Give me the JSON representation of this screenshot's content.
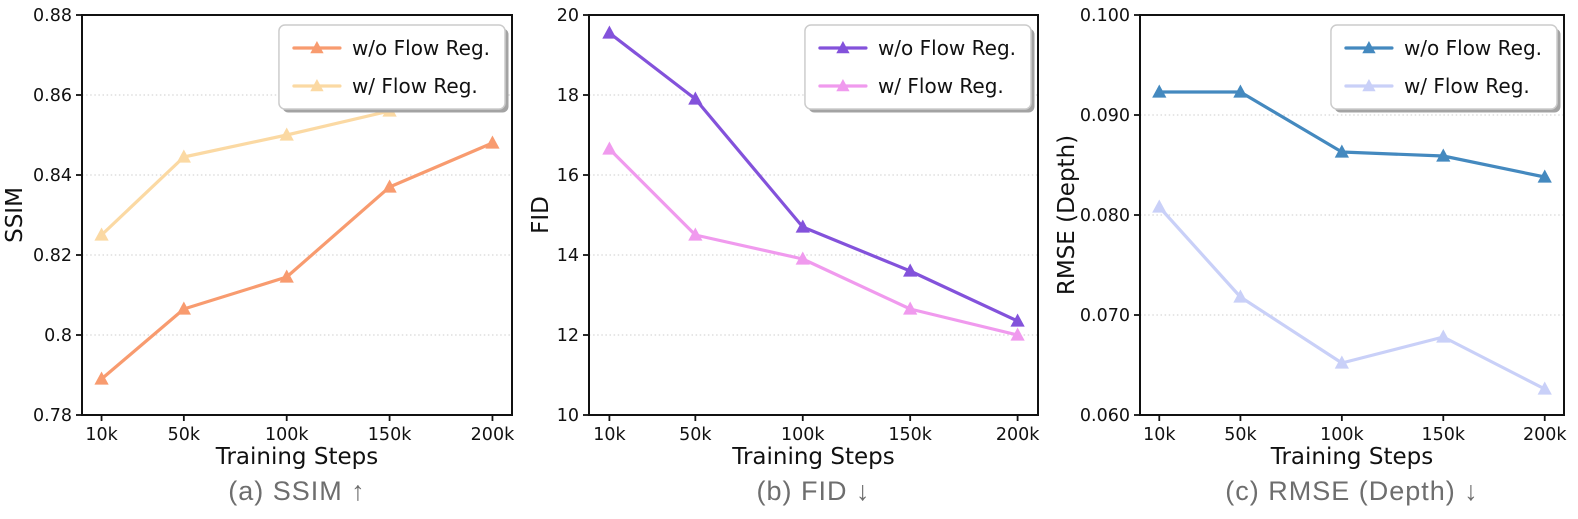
{
  "figure_labels": {
    "caption_a": "(a) SSIM ↑",
    "caption_b": "(b) FID ↓",
    "caption_c": "(c) RMSE (Depth) ↓"
  },
  "colors": {
    "axis": "#111111",
    "grid": "#d8d8d8",
    "caption_gray": "#6e6e6e",
    "legend_border": "#cccccc",
    "legend_shadow": "#a3a3a3"
  },
  "chart_data": [
    {
      "type": "line",
      "caption": "(a) SSIM ↑",
      "xlabel": "Training Steps",
      "ylabel": "SSIM",
      "x": [
        10,
        50,
        100,
        150,
        200
      ],
      "x_tick_labels": [
        "10k",
        "50k",
        "100k",
        "150k",
        "200k"
      ],
      "xlim": [
        0.5,
        209.5
      ],
      "ylim": [
        0.78,
        0.88
      ],
      "y_ticks": [
        0.78,
        0.8,
        0.82,
        0.84,
        0.86,
        0.88
      ],
      "y_tick_labels": [
        "0.78",
        "0.8",
        "0.82",
        "0.84",
        "0.86",
        "0.88"
      ],
      "grid": true,
      "legend_position": "top-right",
      "layout": {
        "margin_left": 82
      },
      "series": [
        {
          "name": "w/o Flow Reg.",
          "color": "#F89B6F",
          "marker": "triangle-up",
          "values": [
            0.789,
            0.8065,
            0.8145,
            0.837,
            0.848
          ]
        },
        {
          "name": "w/ Flow Reg.",
          "color": "#FBD9A3",
          "marker": "triangle-up",
          "values": [
            0.825,
            0.8445,
            0.85,
            0.856,
            0.858
          ]
        }
      ]
    },
    {
      "type": "line",
      "caption": "(b) FID ↓",
      "xlabel": "Training Steps",
      "ylabel": "FID",
      "x": [
        10,
        50,
        100,
        150,
        200
      ],
      "x_tick_labels": [
        "10k",
        "50k",
        "100k",
        "150k",
        "200k"
      ],
      "xlim": [
        0.5,
        209.5
      ],
      "ylim": [
        10,
        20
      ],
      "y_ticks": [
        10,
        12,
        14,
        16,
        18,
        20
      ],
      "y_tick_labels": [
        "10",
        "12",
        "14",
        "16",
        "18",
        "20"
      ],
      "grid": true,
      "legend_position": "top-right",
      "layout": {
        "margin_left": 63
      },
      "series": [
        {
          "name": "w/o Flow Reg.",
          "color": "#8352DB",
          "marker": "triangle-up",
          "values": [
            19.55,
            17.9,
            14.7,
            13.6,
            12.35
          ]
        },
        {
          "name": "w/ Flow Reg.",
          "color": "#F09AEE",
          "marker": "triangle-up",
          "values": [
            16.65,
            14.5,
            13.9,
            12.65,
            12.0
          ]
        }
      ]
    },
    {
      "type": "line",
      "caption": "(c) RMSE (Depth) ↓",
      "xlabel": "Training Steps",
      "ylabel": "RMSE (Depth)",
      "x": [
        10,
        50,
        100,
        150,
        200
      ],
      "x_tick_labels": [
        "10k",
        "50k",
        "100k",
        "150k",
        "200k"
      ],
      "xlim": [
        0.5,
        209.5
      ],
      "ylim": [
        0.06,
        0.1
      ],
      "y_ticks": [
        0.06,
        0.07,
        0.08,
        0.09,
        0.1
      ],
      "y_tick_labels": [
        "0.060",
        "0.070",
        "0.080",
        "0.090",
        "0.100"
      ],
      "grid": true,
      "legend_position": "top-right",
      "layout": {
        "margin_left": 88
      },
      "series": [
        {
          "name": "w/o Flow Reg.",
          "color": "#4489BF",
          "marker": "triangle-up",
          "values": [
            0.0923,
            0.0923,
            0.0863,
            0.0859,
            0.0838
          ]
        },
        {
          "name": "w/ Flow Reg.",
          "color": "#C9D0F8",
          "marker": "triangle-up",
          "values": [
            0.0808,
            0.0718,
            0.0652,
            0.0678,
            0.0626
          ]
        }
      ]
    }
  ]
}
